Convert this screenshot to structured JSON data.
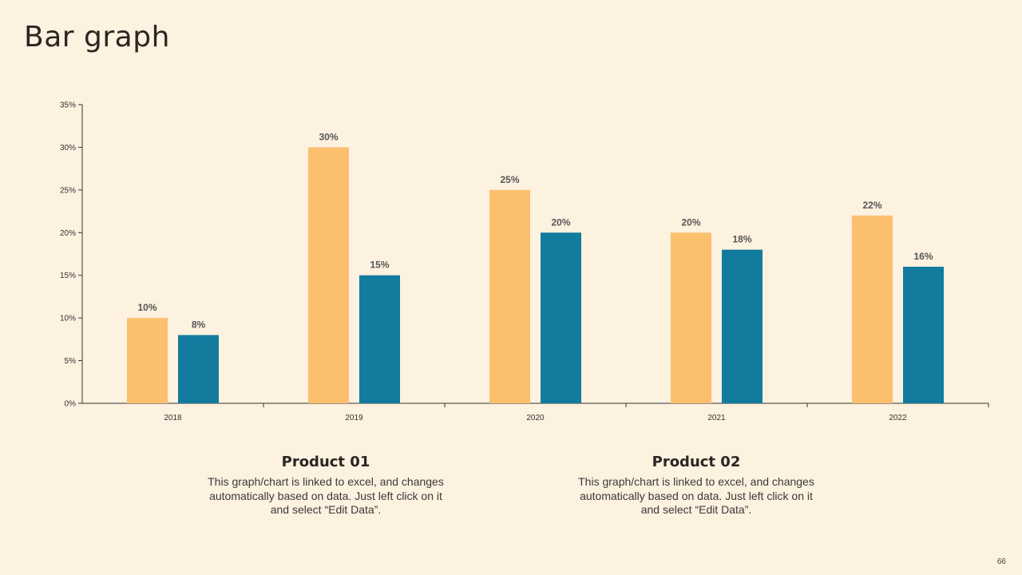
{
  "title": "Bar graph",
  "page_number": "66",
  "colors": {
    "background": "#FDF1DF",
    "series1": "#FBBF6E",
    "series2": "#137B9E",
    "axis": "#333333"
  },
  "chart_data": {
    "type": "bar",
    "categories": [
      "2018",
      "2019",
      "2020",
      "2021",
      "2022"
    ],
    "series": [
      {
        "name": "Product 01",
        "values": [
          10,
          30,
          25,
          20,
          22
        ],
        "labels": [
          "10%",
          "30%",
          "25%",
          "20%",
          "22%"
        ]
      },
      {
        "name": "Product 02",
        "values": [
          8,
          15,
          20,
          18,
          16
        ],
        "labels": [
          "8%",
          "15%",
          "20%",
          "18%",
          "16%"
        ]
      }
    ],
    "ylim": [
      0,
      35
    ],
    "yticks": [
      0,
      5,
      10,
      15,
      20,
      25,
      30,
      35
    ],
    "ytick_labels": [
      "0%",
      "5%",
      "10%",
      "15%",
      "20%",
      "25%",
      "30%",
      "35%"
    ],
    "grid": false
  },
  "legend": [
    {
      "title": "Product 01",
      "description": "This graph/chart is linked to excel, and changes automatically based on data. Just left click on it and select “Edit Data”."
    },
    {
      "title": "Product 02",
      "description": "This graph/chart is linked to excel, and changes automatically based on data. Just left click on it and select “Edit Data”."
    }
  ]
}
